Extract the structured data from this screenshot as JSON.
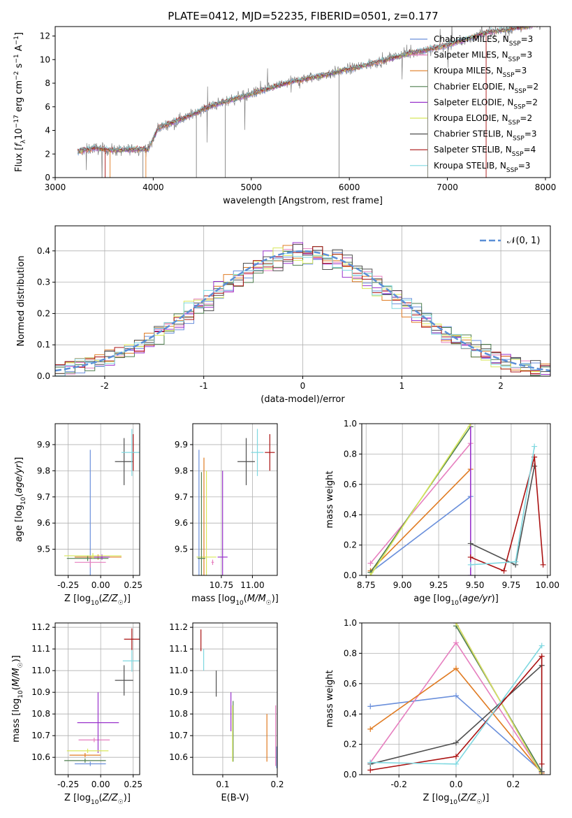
{
  "figure": {
    "title": "PLATE=0412, MJD=52235, FIBERID=0501, z=0.177"
  },
  "colors": {
    "Chabrier MILES": "#6a8fdb",
    "Salpeter MILES": "#e67fbf",
    "Kroupa MILES": "#e07b22",
    "Chabrier ELODIE": "#4f7f4f",
    "Salpeter ELODIE": "#9933cc",
    "Kroupa ELODIE": "#d8e85a",
    "Chabrier STELIB": "#505050",
    "Salpeter STELIB": "#aa1111",
    "Kroupa STELIB": "#7fd8e0"
  },
  "chart_data": [
    {
      "id": "spectrum",
      "type": "line",
      "xlabel": "wavelength [Angstrom, rest frame]",
      "ylabel": "Flux [f_λ 10^-17 erg cm^-2 s^-1 A^-1]",
      "xlim": [
        3000,
        8050
      ],
      "ylim": [
        0,
        12.8
      ],
      "xticks": [
        3000,
        4000,
        5000,
        6000,
        7000,
        8000
      ],
      "yticks": [
        0,
        2,
        4,
        6,
        8,
        10,
        12
      ],
      "grid": false,
      "legend_position": "top-right",
      "legend": [
        {
          "model": "Chabrier MILES",
          "n": "3"
        },
        {
          "model": "Salpeter MILES",
          "n": "3"
        },
        {
          "model": "Kroupa MILES",
          "n": "3"
        },
        {
          "model": "Chabrier ELODIE",
          "n": "2"
        },
        {
          "model": "Salpeter ELODIE",
          "n": "2"
        },
        {
          "model": "Kroupa ELODIE",
          "n": "2"
        },
        {
          "model": "Chabrier STELIB",
          "n": "3"
        },
        {
          "model": "Salpeter STELIB",
          "n": "4"
        },
        {
          "model": "Kroupa STELIB",
          "n": "3"
        }
      ],
      "continuum": {
        "x": [
          3230,
          3400,
          3600,
          3800,
          3950,
          4050,
          4300,
          4600,
          5000,
          5400,
          5800,
          6200,
          6600,
          7000,
          7400,
          7800,
          8050
        ],
        "y": [
          2.2,
          2.5,
          2.3,
          2.4,
          2.4,
          4.2,
          5.0,
          6.1,
          7.1,
          8.1,
          8.8,
          9.6,
          10.5,
          11.2,
          12.3,
          12.8,
          13.2
        ]
      },
      "spectrum_range": [
        3230,
        7950
      ]
    },
    {
      "id": "residuals",
      "type": "histogram",
      "xlabel": "(data-model)/error",
      "ylabel": "Normed distribution",
      "xlim": [
        -2.5,
        2.5
      ],
      "ylim": [
        0,
        0.48
      ],
      "xticks": [
        -2,
        -1,
        0,
        1,
        2
      ],
      "yticks": [
        0.0,
        0.1,
        0.2,
        0.3,
        0.4
      ],
      "grid": true,
      "legend_position": "top-right",
      "reference_curve": {
        "label": "𝒩(0, 1)",
        "mean": 0,
        "sigma": 1,
        "style": "dashed"
      },
      "bin_width": 0.1
    },
    {
      "id": "z-age",
      "type": "scatter",
      "xlabel": "Z [log₁₀(Z/Z☉)]",
      "ylabel": "age [log₁₀(age/yr)]",
      "xlim": [
        -0.35,
        0.3
      ],
      "ylim": [
        9.4,
        9.98
      ],
      "xticks": [
        -0.25,
        0.0,
        0.25
      ],
      "yticks": [
        9.5,
        9.6,
        9.7,
        9.8,
        9.9
      ],
      "grid": true,
      "points": [
        {
          "model": "Chabrier MILES",
          "x": -0.08,
          "y": 9.47,
          "xerr": 0.12,
          "yerr": 0.41
        },
        {
          "model": "Salpeter MILES",
          "x": -0.08,
          "y": 9.45,
          "xerr": 0.12,
          "yerr": 0.02
        },
        {
          "model": "Kroupa MILES",
          "x": -0.02,
          "y": 9.47,
          "xerr": 0.18,
          "yerr": 0.01
        },
        {
          "model": "Chabrier ELODIE",
          "x": -0.1,
          "y": 9.465,
          "xerr": 0.16,
          "yerr": 0.01
        },
        {
          "model": "Salpeter ELODIE",
          "x": 0.01,
          "y": 9.47,
          "xerr": 0.06,
          "yerr": 0.01
        },
        {
          "model": "Kroupa ELODIE",
          "x": -0.06,
          "y": 9.475,
          "xerr": 0.22,
          "yerr": 0.01
        },
        {
          "model": "Chabrier STELIB",
          "x": 0.18,
          "y": 9.835,
          "xerr": 0.07,
          "yerr": 0.09
        },
        {
          "model": "Salpeter STELIB",
          "x": 0.25,
          "y": 9.87,
          "xerr": 0.01,
          "yerr": 0.07
        },
        {
          "model": "Kroupa STELIB",
          "x": 0.24,
          "y": 9.87,
          "xerr": 0.08,
          "yerr": 0.09
        }
      ]
    },
    {
      "id": "mass-age",
      "type": "scatter",
      "xlabel": "mass [log₁₀(M/M☉)]",
      "xlim": [
        10.52,
        11.2
      ],
      "ylim": [
        9.4,
        9.98
      ],
      "xticks": [
        10.75,
        11.0
      ],
      "yticks": [
        9.5,
        9.6,
        9.7,
        9.8,
        9.9
      ],
      "grid": true,
      "points": [
        {
          "model": "Chabrier MILES",
          "x": 10.57,
          "y": 9.47,
          "xerr": 0.01,
          "yerr": 0.41
        },
        {
          "model": "Kroupa MILES",
          "x": 10.61,
          "y": 9.47,
          "xerr": 0.01,
          "yerr": 0.38
        },
        {
          "model": "Kroupa ELODIE",
          "x": 10.63,
          "y": 9.47,
          "xerr": 0.08,
          "yerr": 0.33
        },
        {
          "model": "Chabrier ELODIE",
          "x": 10.59,
          "y": 9.465,
          "xerr": 0.03,
          "yerr": 0.33
        },
        {
          "model": "Salpeter ELODIE",
          "x": 10.76,
          "y": 9.47,
          "xerr": 0.04,
          "yerr": 0.33
        },
        {
          "model": "Salpeter MILES",
          "x": 10.68,
          "y": 9.45,
          "xerr": 0.01,
          "yerr": 0.01
        },
        {
          "model": "Chabrier STELIB",
          "x": 10.95,
          "y": 9.835,
          "xerr": 0.07,
          "yerr": 0.09
        },
        {
          "model": "Kroupa STELIB",
          "x": 11.04,
          "y": 9.87,
          "xerr": 0.05,
          "yerr": 0.09
        },
        {
          "model": "Salpeter STELIB",
          "x": 11.14,
          "y": 9.87,
          "xerr": 0.04,
          "yerr": 0.07
        }
      ]
    },
    {
      "id": "weight-age",
      "type": "line",
      "xlabel": "age [log₁₀(age/yr)]",
      "ylabel": "mass weight",
      "xlim": [
        8.72,
        10.02
      ],
      "ylim": [
        0,
        1.0
      ],
      "xticks": [
        8.75,
        9.0,
        9.25,
        9.5,
        9.75,
        10.0
      ],
      "yticks": [
        0.0,
        0.2,
        0.4,
        0.6,
        0.8,
        1.0
      ],
      "grid": true,
      "series": [
        {
          "name": "Chabrier MILES",
          "x": [
            8.78,
            9.47
          ],
          "y": [
            0.02,
            0.52
          ]
        },
        {
          "name": "Salpeter MILES",
          "x": [
            8.78,
            9.47
          ],
          "y": [
            0.08,
            0.87
          ]
        },
        {
          "name": "Kroupa MILES",
          "x": [
            8.78,
            9.47
          ],
          "y": [
            0.03,
            0.7
          ]
        },
        {
          "name": "Chabrier ELODIE",
          "x": [
            8.78,
            9.47
          ],
          "y": [
            0.02,
            0.98
          ]
        },
        {
          "name": "Salpeter ELODIE",
          "x": [
            9.47,
            9.47
          ],
          "y": [
            0.0,
            1.0
          ]
        },
        {
          "name": "Kroupa ELODIE",
          "x": [
            8.78,
            9.47
          ],
          "y": [
            0.0,
            1.0
          ]
        },
        {
          "name": "Chabrier STELIB",
          "x": [
            9.47,
            9.78,
            9.91
          ],
          "y": [
            0.21,
            0.07,
            0.72
          ]
        },
        {
          "name": "Salpeter STELIB",
          "x": [
            9.47,
            9.7,
            9.91,
            9.97
          ],
          "y": [
            0.12,
            0.03,
            0.78,
            0.07
          ]
        },
        {
          "name": "Kroupa STELIB",
          "x": [
            9.47,
            9.78,
            9.91
          ],
          "y": [
            0.07,
            0.09,
            0.85
          ]
        }
      ]
    },
    {
      "id": "z-mass",
      "type": "scatter",
      "xlabel": "Z [log₁₀(Z/Z☉)]",
      "ylabel": "mass [log₁₀(M/M☉)]",
      "xlim": [
        -0.35,
        0.3
      ],
      "ylim": [
        10.52,
        11.22
      ],
      "xticks": [
        -0.25,
        0.0,
        0.25
      ],
      "yticks": [
        10.6,
        10.7,
        10.8,
        10.9,
        11.0,
        11.1,
        11.2
      ],
      "grid": true,
      "points": [
        {
          "model": "Chabrier MILES",
          "x": -0.08,
          "y": 10.57,
          "xerr": 0.12,
          "yerr": 0.01
        },
        {
          "model": "Salpeter MILES",
          "x": -0.05,
          "y": 10.68,
          "xerr": 0.12,
          "yerr": 0.01
        },
        {
          "model": "Kroupa MILES",
          "x": -0.12,
          "y": 10.61,
          "xerr": 0.12,
          "yerr": 0.01
        },
        {
          "model": "Chabrier ELODIE",
          "x": -0.12,
          "y": 10.585,
          "xerr": 0.16,
          "yerr": 0.01
        },
        {
          "model": "Salpeter ELODIE",
          "x": -0.02,
          "y": 10.76,
          "xerr": 0.16,
          "yerr": 0.14
        },
        {
          "model": "Kroupa ELODIE",
          "x": -0.1,
          "y": 10.63,
          "xerr": 0.16,
          "yerr": 0.01
        },
        {
          "model": "Chabrier STELIB",
          "x": 0.18,
          "y": 10.955,
          "xerr": 0.07,
          "yerr": 0.07
        },
        {
          "model": "Salpeter STELIB",
          "x": 0.24,
          "y": 11.145,
          "xerr": 0.06,
          "yerr": 0.05
        },
        {
          "model": "Kroupa STELIB",
          "x": 0.24,
          "y": 11.045,
          "xerr": 0.07,
          "yerr": 0.05
        }
      ]
    },
    {
      "id": "ebv-mass",
      "type": "scatter",
      "xlabel": "E(B-V)",
      "xlim": [
        0.045,
        0.2
      ],
      "ylim": [
        10.52,
        11.22
      ],
      "xticks": [
        0.1,
        0.2
      ],
      "yticks": [
        10.6,
        10.7,
        10.8,
        10.9,
        11.0,
        11.1,
        11.2
      ],
      "grid": true,
      "points": [
        {
          "model": "Chabrier MILES",
          "x": 0.199,
          "y": 10.6,
          "yerr": 0.05
        },
        {
          "model": "Salpeter MILES",
          "x": 0.197,
          "y": 10.7,
          "yerr": 0.14
        },
        {
          "model": "Kroupa MILES",
          "x": 0.181,
          "y": 10.69,
          "yerr": 0.11
        },
        {
          "model": "Chabrier ELODIE",
          "x": 0.119,
          "y": 10.72,
          "yerr": 0.14
        },
        {
          "model": "Salpeter ELODIE",
          "x": 0.115,
          "y": 10.81,
          "yerr": 0.09
        },
        {
          "model": "Kroupa ELODIE",
          "x": 0.118,
          "y": 10.71,
          "yerr": 0.13
        },
        {
          "model": "Chabrier STELIB",
          "x": 0.088,
          "y": 10.94,
          "yerr": 0.06
        },
        {
          "model": "Salpeter STELIB",
          "x": 0.06,
          "y": 11.14,
          "yerr": 0.05
        },
        {
          "model": "Kroupa STELIB",
          "x": 0.065,
          "y": 11.05,
          "yerr": 0.05
        }
      ]
    },
    {
      "id": "weight-z",
      "type": "line",
      "xlabel": "Z [log₁₀(Z/Z☉)]",
      "ylabel": "mass weight",
      "xlim": [
        -0.33,
        0.33
      ],
      "ylim": [
        0,
        1.0
      ],
      "xticks": [
        -0.2,
        0.0,
        0.2
      ],
      "yticks": [
        0.0,
        0.2,
        0.4,
        0.6,
        0.8,
        1.0
      ],
      "grid": true,
      "series": [
        {
          "name": "Chabrier MILES",
          "x": [
            -0.3,
            0.0,
            0.3
          ],
          "y": [
            0.45,
            0.52,
            0.02
          ]
        },
        {
          "name": "Salpeter MILES",
          "x": [
            -0.3,
            0.0,
            0.3
          ],
          "y": [
            0.08,
            0.87,
            0.01
          ]
        },
        {
          "name": "Kroupa MILES",
          "x": [
            -0.3,
            0.0,
            0.3
          ],
          "y": [
            0.3,
            0.7,
            0.01
          ]
        },
        {
          "name": "Chabrier ELODIE",
          "x": [
            0.0,
            0.3
          ],
          "y": [
            0.98,
            0.02
          ]
        },
        {
          "name": "Salpeter ELODIE",
          "x": [
            0.0,
            0.3
          ],
          "y": [
            1.0,
            0.0
          ]
        },
        {
          "name": "Kroupa ELODIE",
          "x": [
            0.0,
            0.3
          ],
          "y": [
            1.0,
            0.0
          ]
        },
        {
          "name": "Chabrier STELIB",
          "x": [
            -0.3,
            0.0,
            0.3,
            0.3
          ],
          "y": [
            0.07,
            0.21,
            0.72,
            0.02
          ]
        },
        {
          "name": "Salpeter STELIB",
          "x": [
            -0.3,
            0.0,
            0.3,
            0.3
          ],
          "y": [
            0.03,
            0.12,
            0.78,
            0.07
          ]
        },
        {
          "name": "Kroupa STELIB",
          "x": [
            -0.3,
            0.0,
            0.3
          ],
          "y": [
            0.08,
            0.07,
            0.85
          ]
        }
      ]
    }
  ]
}
